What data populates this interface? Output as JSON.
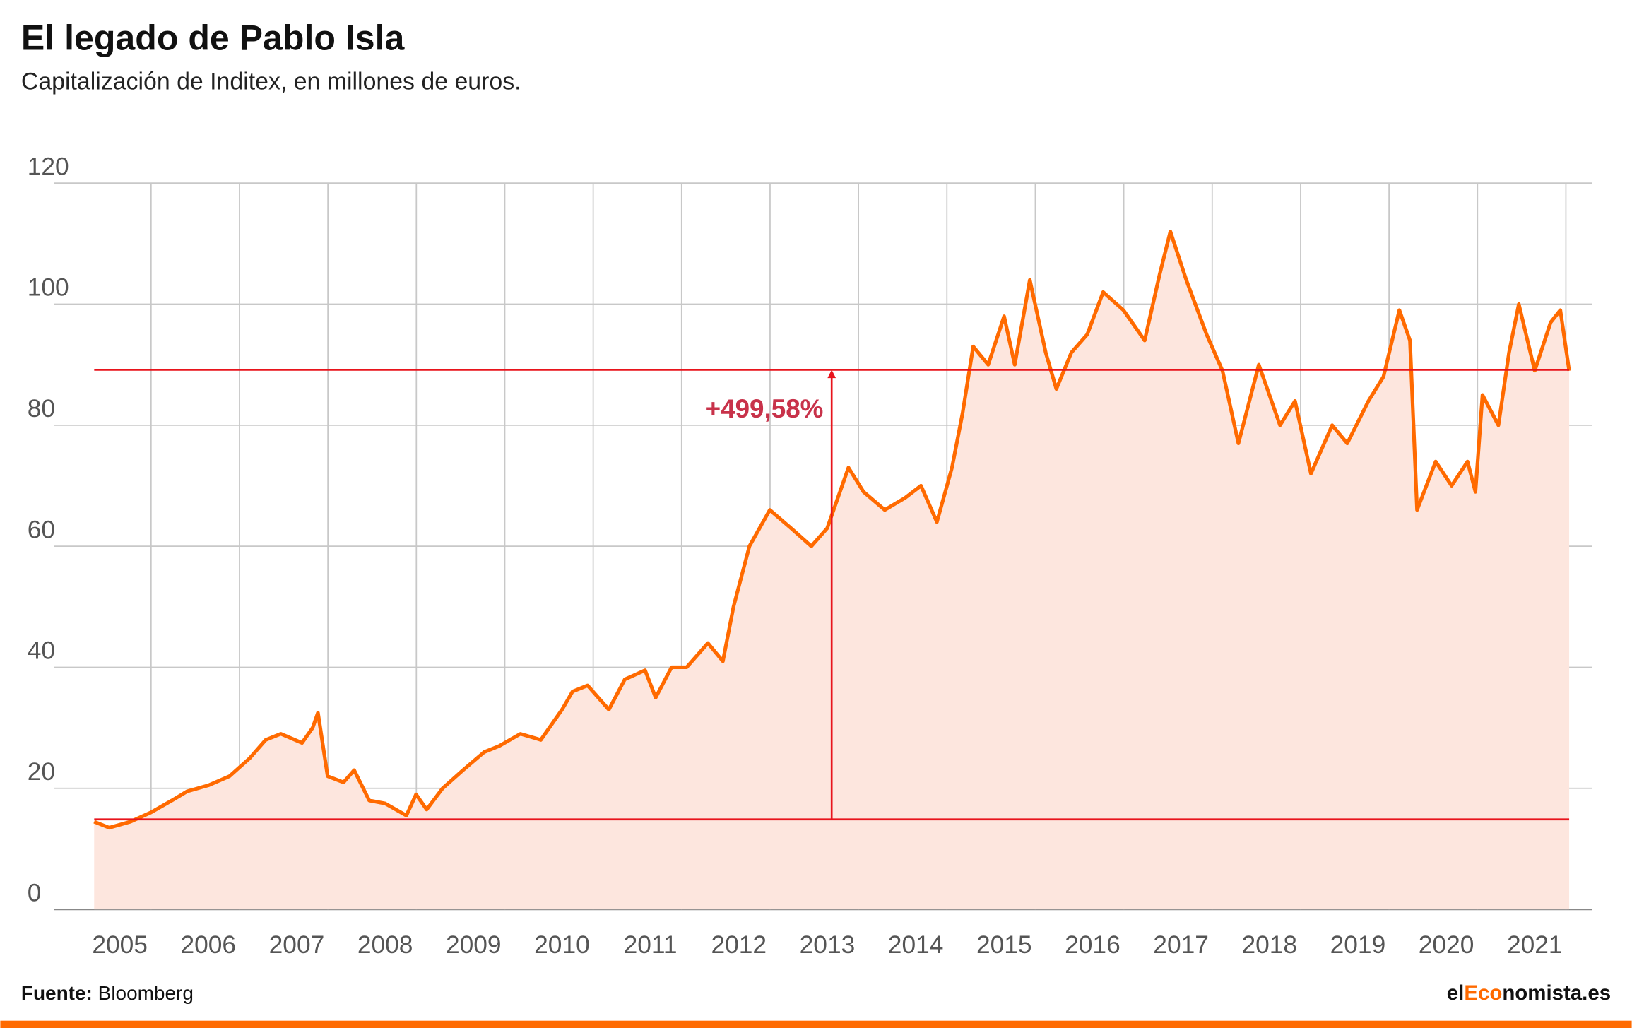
{
  "chart_data": {
    "type": "area",
    "title": "El legado de Pablo Isla",
    "subtitle": "Capitalización de Inditex, en millones de euros.",
    "x": [
      2004.71,
      2004.88,
      2005.12,
      2005.35,
      2005.59,
      2005.76,
      2006.0,
      2006.24,
      2006.47,
      2006.65,
      2006.82,
      2007.06,
      2007.18,
      2007.24,
      2007.35,
      2007.53,
      2007.65,
      2007.82,
      2008.0,
      2008.24,
      2008.35,
      2008.47,
      2008.65,
      2008.88,
      2009.12,
      2009.29,
      2009.53,
      2009.76,
      2010.0,
      2010.12,
      2010.29,
      2010.53,
      2010.71,
      2010.94,
      2011.06,
      2011.24,
      2011.41,
      2011.65,
      2011.82,
      2011.94,
      2012.12,
      2012.35,
      2012.59,
      2012.82,
      2013.0,
      2013.24,
      2013.41,
      2013.65,
      2013.88,
      2014.06,
      2014.24,
      2014.41,
      2014.53,
      2014.65,
      2014.82,
      2015.0,
      2015.12,
      2015.29,
      2015.47,
      2015.59,
      2015.76,
      2015.94,
      2016.12,
      2016.35,
      2016.59,
      2016.76,
      2016.88,
      2017.06,
      2017.29,
      2017.47,
      2017.65,
      2017.88,
      2018.12,
      2018.29,
      2018.47,
      2018.71,
      2018.88,
      2019.12,
      2019.29,
      2019.47,
      2019.59,
      2019.67,
      2019.88,
      2020.06,
      2020.24,
      2020.33,
      2020.41,
      2020.59,
      2020.71,
      2020.82,
      2021.0,
      2021.18,
      2021.29,
      2021.39
    ],
    "values": [
      14.5,
      13.5,
      14.5,
      16,
      18,
      19.5,
      20.5,
      22,
      25,
      28,
      29,
      27.5,
      30,
      32.5,
      22,
      21,
      23,
      18,
      17.5,
      15.5,
      19,
      16.5,
      20,
      23,
      26,
      27,
      29,
      28,
      33,
      36,
      37,
      33,
      38,
      39.5,
      35,
      40,
      40,
      44,
      41,
      50,
      60,
      66,
      63,
      60,
      63,
      73,
      69,
      66,
      68,
      70,
      64,
      73,
      82,
      93,
      90,
      98,
      90,
      104,
      92,
      86,
      92,
      95,
      102,
      99,
      94,
      105,
      112,
      104,
      95,
      89,
      77,
      90,
      80,
      84,
      72,
      80,
      77,
      84,
      88,
      99,
      94,
      66,
      74,
      70,
      74,
      69,
      85,
      80,
      92,
      100,
      89,
      97,
      99,
      89
    ],
    "color": "#ff6a00",
    "xlim": [
      2004.26,
      2021.65
    ],
    "xticks": [
      2005,
      2006,
      2007,
      2008,
      2009,
      2010,
      2011,
      2012,
      2013,
      2014,
      2015,
      2016,
      2017,
      2018,
      2019,
      2020,
      2021
    ],
    "ylim": [
      0,
      120
    ],
    "yticks": [
      0,
      20,
      40,
      60,
      80,
      100,
      120
    ],
    "grid": true,
    "reference_lines": [
      14.87,
      89.16
    ],
    "annotation": {
      "text": "+499,58%",
      "x": 2013.05
    },
    "source_label": "Fuente:",
    "source": "Bloomberg",
    "logo": [
      "el",
      "Eco",
      "nomista.es"
    ]
  }
}
